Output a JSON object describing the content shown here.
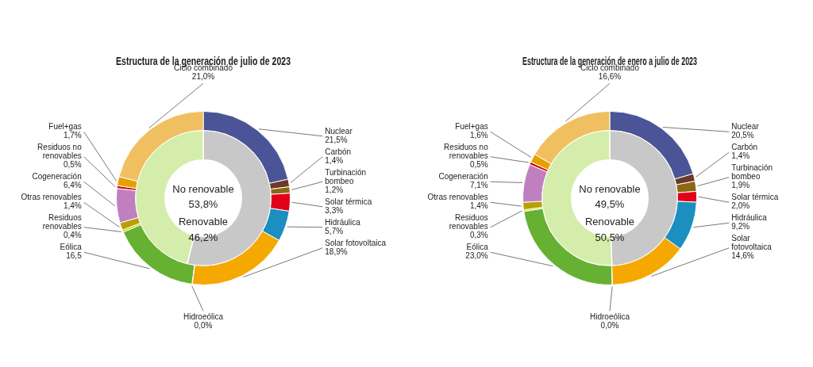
{
  "chart_data": [
    {
      "type": "doughnut",
      "title": "Estructura de la generación de julio de 2023",
      "data_labels": true,
      "series": [
        {
          "categories": [
            "No renovable",
            "Renovable"
          ],
          "values": [
            53.8,
            46.2
          ],
          "value_labels": [
            "53,8%",
            "46,2%"
          ],
          "colors": [
            "#c8c8c8",
            "#d4edaa"
          ]
        },
        {
          "categories": [
            "Nuclear",
            "Carbón",
            "Turbinación\nbombeo",
            "Solar térmica",
            "Hidráulica",
            "Solar fotovoltaica",
            "Hidroeólica",
            "Eólica",
            "Residuos\nrenovables",
            "Otras renovables",
            "Cogeneración",
            "Residuos no\nrenovables",
            "Fuel+gas",
            "Ciclo combinado"
          ],
          "values": [
            21.5,
            1.4,
            1.2,
            3.3,
            5.7,
            18.9,
            0.05,
            16.5,
            0.4,
            1.4,
            6.4,
            0.5,
            1.7,
            21.0
          ],
          "value_labels": [
            "21,5%",
            "1,4%",
            "1,2%",
            "3,3%",
            "5,7%",
            "18,9%",
            "0,0%",
            "16,5",
            "0,4%",
            "1,4%",
            "6,4%",
            "0,5%",
            "1,7%",
            "21,0%"
          ],
          "colors": [
            "#4a5496",
            "#6b3a2a",
            "#8b6914",
            "#e2001a",
            "#1a8fc0",
            "#f5a800",
            "#8db832",
            "#66b132",
            "#c8d400",
            "#b8a000",
            "#c080c0",
            "#cc0000",
            "#e8a000",
            "#f0c060"
          ]
        }
      ]
    },
    {
      "type": "doughnut",
      "title": "Estructura de la generación de enero a julio de 2023",
      "data_labels": true,
      "series": [
        {
          "categories": [
            "No renovable",
            "Renovable"
          ],
          "values": [
            49.5,
            50.5
          ],
          "value_labels": [
            "49,5%",
            "50,5%"
          ],
          "colors": [
            "#c8c8c8",
            "#d4edaa"
          ]
        },
        {
          "categories": [
            "Nuclear",
            "Carbón",
            "Turbinación\nbombeo",
            "Solar térmica",
            "Hidráulica",
            "Solar\nfotovoltaica",
            "Hidroeólica",
            "Eólica",
            "Residuos\nrenovables",
            "Otras renovables",
            "Cogeneración",
            "Residuos no\nrenovables",
            "Fuel+gas",
            "Ciclo combinado"
          ],
          "values": [
            20.5,
            1.4,
            1.9,
            2.0,
            9.2,
            14.6,
            0.05,
            23.0,
            0.3,
            1.4,
            7.1,
            0.5,
            1.6,
            16.6
          ],
          "value_labels": [
            "20,5%",
            "1,4%",
            "1,9%",
            "2,0%",
            "9,2%",
            "14,6%",
            "0,0%",
            "23,0%",
            "0,3%",
            "1,4%",
            "7,1%",
            "0,5%",
            "1,6%",
            "16,6%"
          ],
          "colors": [
            "#4a5496",
            "#6b3a2a",
            "#8b6914",
            "#e2001a",
            "#1a8fc0",
            "#f5a800",
            "#8db832",
            "#66b132",
            "#c8d400",
            "#b8a000",
            "#c080c0",
            "#cc0000",
            "#e8a000",
            "#f0c060"
          ]
        }
      ]
    }
  ]
}
